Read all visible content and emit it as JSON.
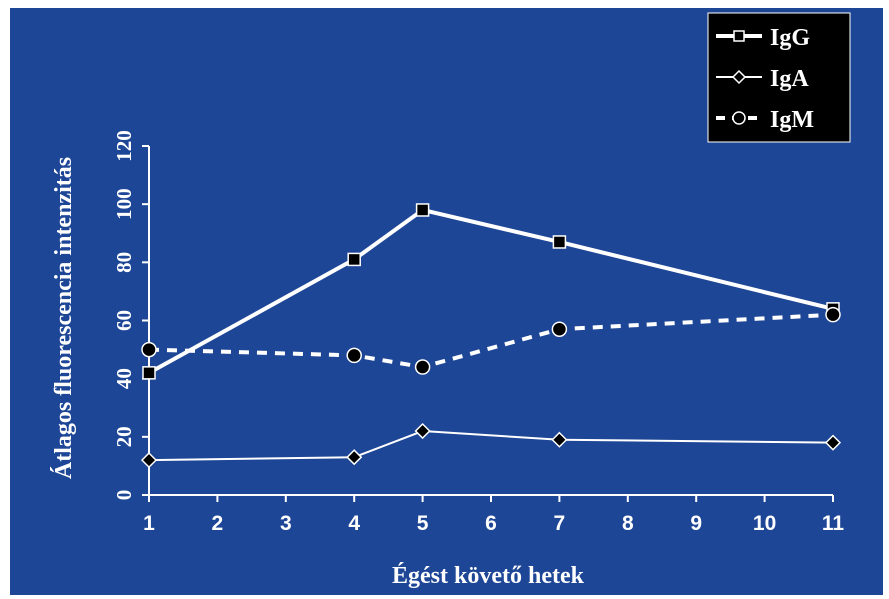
{
  "chart_data": {
    "type": "line",
    "title": "",
    "xlabel": "Égést követő hetek",
    "ylabel": "Átlagos fluorescencia intenzitás",
    "xlim": [
      1,
      11
    ],
    "ylim": [
      0,
      120
    ],
    "x_ticks": [
      "1",
      "2",
      "3",
      "4",
      "5",
      "6",
      "7",
      "8",
      "9",
      "10",
      "11"
    ],
    "y_ticks": [
      "0",
      "20",
      "40",
      "60",
      "80",
      "100",
      "120"
    ],
    "grid": false,
    "legend_position": "top-right",
    "colors": {
      "background": "#1e4696",
      "lines": "#ffffff",
      "legend_background": "#000000"
    },
    "series": [
      {
        "name": "IgG",
        "marker": "square",
        "line": "solid-thick",
        "x": [
          1,
          4,
          5,
          7,
          11
        ],
        "values": [
          42,
          81,
          98,
          87,
          64
        ]
      },
      {
        "name": "IgA",
        "marker": "diamond",
        "line": "solid-thin",
        "x": [
          1,
          4,
          5,
          7,
          11
        ],
        "values": [
          12,
          13,
          22,
          19,
          18
        ]
      },
      {
        "name": "IgM",
        "marker": "circle",
        "line": "dashed",
        "x": [
          1,
          4,
          5,
          7,
          11
        ],
        "values": [
          50,
          48,
          44,
          57,
          62
        ]
      }
    ]
  }
}
